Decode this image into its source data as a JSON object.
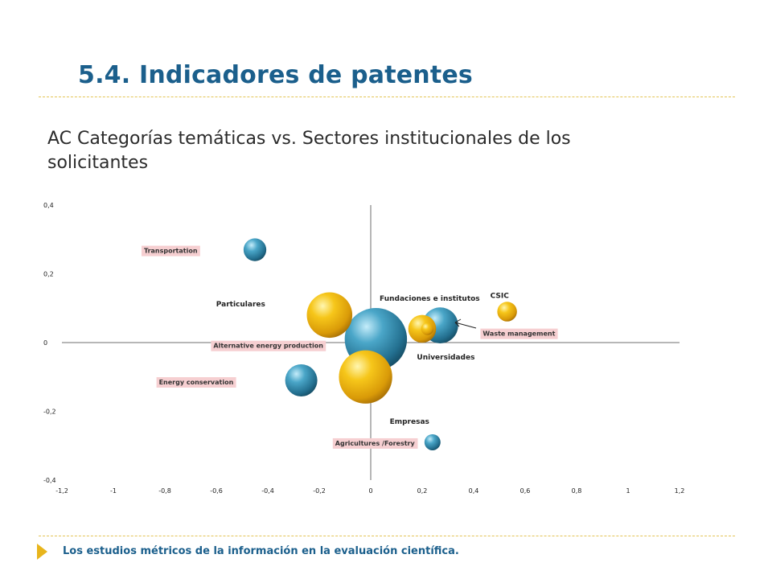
{
  "slide": {
    "title": "5.4. Indicadores de patentes",
    "subtitle": "AC Categorías temáticas vs. Sectores institucionales de los solicitantes",
    "footer": "Los estudios métricos de la información en la evaluación científica."
  },
  "colors": {
    "title": "#1b5f8c",
    "rule": "#e3c455",
    "bubble_blue": "#2a8aae",
    "bubble_gold": "#f2b90f",
    "label_box": "#f6cfd1",
    "footer_arrow": "#e8b51c"
  },
  "chart_data": {
    "type": "scatter",
    "subtype": "bubble",
    "xlim": [
      -1.2,
      1.2
    ],
    "ylim": [
      -0.4,
      0.4
    ],
    "x_ticks": [
      "-1,2",
      "-1",
      "-0,8",
      "-0,6",
      "-0,4",
      "-0,2",
      "0",
      "0,2",
      "0,4",
      "0,6",
      "0,8",
      "1",
      "1,2"
    ],
    "y_ticks": [
      "0,4",
      "0,2",
      "0",
      "-0,2",
      "-0,4"
    ],
    "grid": false,
    "series": [
      {
        "group": "thematic categories",
        "color": "blue",
        "points": [
          {
            "label": "Transportation",
            "x": -0.45,
            "y": 0.27,
            "size": 2,
            "boxed": true
          },
          {
            "label": "Alternative energy production",
            "x": 0.02,
            "y": 0.01,
            "size": 15,
            "boxed": true
          },
          {
            "label": "Energy conservation",
            "x": -0.27,
            "y": -0.11,
            "size": 4,
            "boxed": true
          },
          {
            "label": "Waste management",
            "x": 0.27,
            "y": 0.05,
            "size": 5,
            "boxed": true
          },
          {
            "label": "Agricultures /Forestry",
            "x": 0.24,
            "y": -0.29,
            "size": 1,
            "boxed": true
          }
        ]
      },
      {
        "group": "institutional sectors",
        "color": "gold",
        "points": [
          {
            "label": "Particulares",
            "x": -0.16,
            "y": 0.08,
            "size": 8,
            "boxed": false
          },
          {
            "label": "Fundaciones e institutos",
            "x": 0.2,
            "y": 0.04,
            "size": 3,
            "boxed": false
          },
          {
            "label": "CSIC",
            "x": 0.53,
            "y": 0.09,
            "size": 1.5,
            "boxed": false
          },
          {
            "label": "Universidades",
            "x": 0.22,
            "y": 0.04,
            "size": 0.6,
            "boxed": false
          },
          {
            "label": "Empresas",
            "x": -0.02,
            "y": -0.1,
            "size": 11,
            "boxed": false
          }
        ]
      }
    ]
  }
}
